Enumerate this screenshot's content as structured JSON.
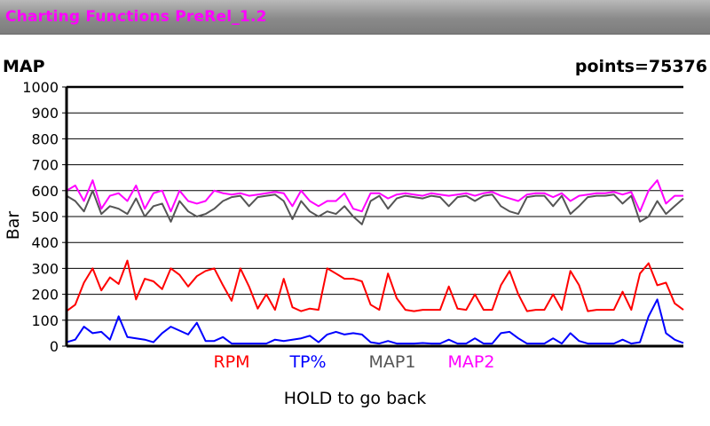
{
  "app": {
    "title": "Charting Functions PreRel_1.2",
    "title_color": "#ff00ff"
  },
  "hint": "HOLD to go back",
  "chart_data": {
    "type": "line",
    "title": "MAP",
    "points_label": "points=75376",
    "ylabel": "Bar",
    "xlabel": "",
    "ylim": [
      0,
      1000
    ],
    "yticks": [
      0,
      100,
      200,
      300,
      400,
      500,
      600,
      700,
      800,
      900,
      1000
    ],
    "grid": true,
    "legend_position": "bottom",
    "series": [
      {
        "name": "RPM",
        "color": "#ff0000",
        "values": [
          135,
          160,
          245,
          300,
          215,
          265,
          240,
          330,
          180,
          260,
          250,
          220,
          300,
          275,
          230,
          270,
          290,
          300,
          235,
          175,
          300,
          230,
          145,
          200,
          140,
          260,
          150,
          135,
          145,
          140,
          300,
          280,
          260,
          260,
          250,
          160,
          140,
          280,
          185,
          140,
          135,
          140,
          140,
          140,
          230,
          145,
          140,
          200,
          140,
          140,
          235,
          290,
          200,
          135,
          140,
          140,
          200,
          140,
          290,
          235,
          135,
          140,
          140,
          140,
          210,
          140,
          280,
          320,
          235,
          245,
          165,
          140
        ]
      },
      {
        "name": "TP%",
        "color": "#0000ff",
        "values": [
          15,
          25,
          75,
          50,
          55,
          25,
          115,
          35,
          30,
          25,
          15,
          50,
          75,
          60,
          45,
          90,
          20,
          20,
          35,
          10,
          10,
          10,
          10,
          10,
          25,
          20,
          25,
          30,
          40,
          15,
          45,
          55,
          45,
          50,
          45,
          15,
          10,
          20,
          10,
          10,
          10,
          12,
          10,
          10,
          25,
          10,
          10,
          30,
          10,
          10,
          50,
          55,
          30,
          10,
          10,
          10,
          30,
          10,
          50,
          20,
          10,
          10,
          10,
          10,
          25,
          10,
          15,
          115,
          180,
          50,
          25,
          12
        ]
      },
      {
        "name": "MAP1",
        "color": "#555555",
        "values": [
          580,
          560,
          520,
          600,
          510,
          540,
          530,
          510,
          570,
          500,
          540,
          550,
          480,
          560,
          520,
          500,
          510,
          530,
          560,
          575,
          580,
          540,
          575,
          580,
          585,
          560,
          490,
          560,
          520,
          500,
          520,
          510,
          540,
          500,
          470,
          560,
          580,
          530,
          570,
          580,
          575,
          570,
          580,
          575,
          540,
          575,
          580,
          560,
          580,
          585,
          540,
          520,
          510,
          575,
          580,
          580,
          540,
          580,
          510,
          540,
          575,
          580,
          580,
          585,
          550,
          580,
          480,
          500,
          560,
          510,
          540,
          570
        ]
      },
      {
        "name": "MAP2",
        "color": "#ff00ff",
        "values": [
          600,
          620,
          560,
          640,
          530,
          580,
          590,
          560,
          620,
          530,
          590,
          600,
          520,
          600,
          560,
          550,
          560,
          600,
          590,
          585,
          590,
          580,
          585,
          590,
          595,
          590,
          540,
          600,
          560,
          540,
          560,
          560,
          590,
          530,
          520,
          590,
          590,
          570,
          585,
          590,
          585,
          580,
          590,
          585,
          580,
          585,
          590,
          580,
          590,
          595,
          580,
          570,
          560,
          585,
          590,
          590,
          575,
          590,
          560,
          580,
          585,
          590,
          590,
          595,
          585,
          595,
          520,
          600,
          640,
          550,
          580,
          580
        ]
      }
    ]
  }
}
